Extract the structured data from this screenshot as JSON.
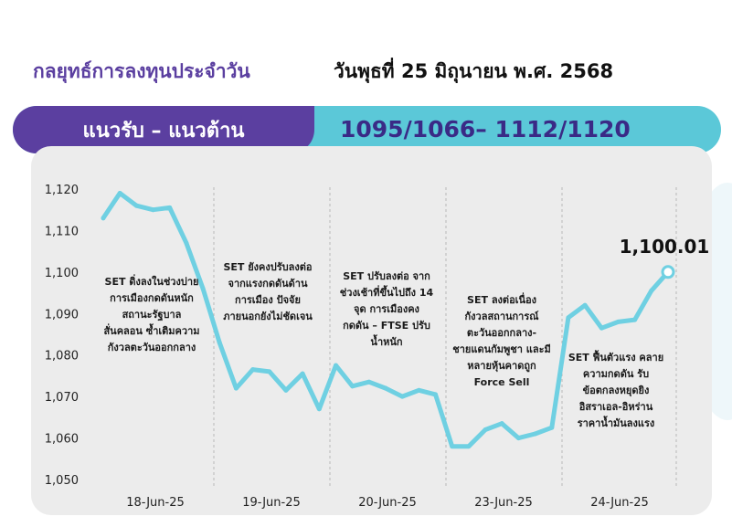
{
  "header": {
    "title_left": "กลยุทธ์การลงทุนประจำวัน",
    "title_right": "วันพุธที่ 25 มิถุนายน พ.ศ. 2568"
  },
  "band": {
    "label": "แนวรับ – แนวต้าน",
    "values": "1095/1066– 1112/1120"
  },
  "colors": {
    "purple": "#5b3fa0",
    "teal": "#5bc8d8",
    "line": "#6fd0e2",
    "panel": "#ececec"
  },
  "chart_data": {
    "type": "line",
    "title": "",
    "xlabel": "",
    "ylabel": "",
    "ylim": [
      1050,
      1120
    ],
    "grid": false,
    "yticks": [
      1050,
      1060,
      1070,
      1080,
      1090,
      1100,
      1110,
      1120
    ],
    "ytick_labels": [
      "1,050",
      "1,060",
      "1,070",
      "1,080",
      "1,090",
      "1,100",
      "1,110",
      "1,120"
    ],
    "day_labels": [
      "18-Jun-25",
      "19-Jun-25",
      "20-Jun-25",
      "23-Jun-25",
      "24-Jun-25"
    ],
    "series": [
      {
        "name": "",
        "values": [
          [
            1113,
            1119,
            1116,
            1115,
            1115.5,
            1107,
            1096
          ],
          [
            1083,
            1072,
            1076.5,
            1076,
            1071.5,
            1075.5,
            1067
          ],
          [
            1077.5,
            1072.5,
            1073.5,
            1072,
            1070,
            1071.5,
            1070.5
          ],
          [
            1058,
            1058,
            1062,
            1063.5,
            1060,
            1061,
            1062.5
          ],
          [
            1089,
            1092,
            1086.5,
            1088,
            1088.5,
            1095.5,
            1100.01
          ]
        ]
      }
    ],
    "last_value_label": "1,100.01",
    "annotations": [
      [
        "SET ดิ่งลงในช่วงบ่าย",
        "การเมืองกดดันหนัก",
        "สถานะรัฐบาล",
        "สั่นคลอน ซ้ำเติมความ",
        "กังวลตะวันออกกลาง"
      ],
      [
        "SET ยังคงปรับลงต่อ",
        "จากแรงกดดันด้าน",
        "การเมือง ปัจจัย",
        "ภายนอกยังไม่ชัดเจน"
      ],
      [
        "SET ปรับลงต่อ จาก",
        "ช่วงเช้าที่ขึ้นไปถึง 14",
        "จุด การเมืองคง",
        "กดดัน – FTSE ปรับ",
        "น้ำหนัก"
      ],
      [
        "SET ลงต่อเนื่อง",
        "กังวลสถานการณ์",
        "ตะวันออกกลาง-",
        "ชายแดนกัมพูชา และมี",
        "หลายหุ้นคาดถูก",
        "Force Sell"
      ],
      [
        "SET ฟื้นตัวแรง คลาย",
        "ความกดดัน รับ",
        "ข้อตกลงหยุดยิง",
        "อิสราเอล-อิหร่าน",
        "ราคาน้ำมันลงแรง"
      ]
    ]
  }
}
